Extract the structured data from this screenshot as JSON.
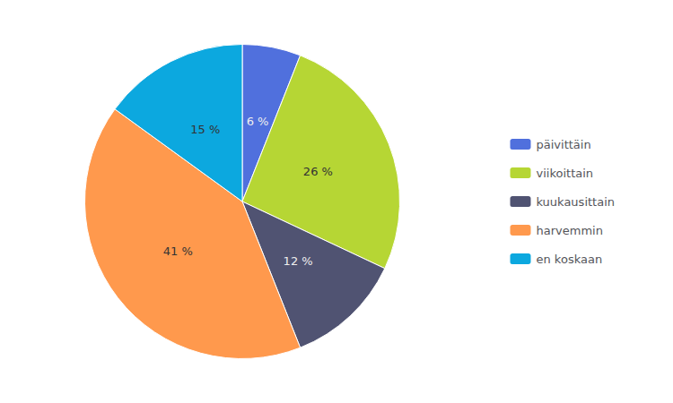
{
  "chart_data": {
    "type": "pie",
    "categories": [
      "päivittäin",
      "viikoittain",
      "kuukausittain",
      "harvemmin",
      "en koskaan"
    ],
    "values": [
      6,
      26,
      12,
      41,
      15
    ],
    "value_labels": [
      "6 %",
      "26 %",
      "12 %",
      "41 %",
      "15 %"
    ],
    "data_labels": true,
    "legend": "right"
  }
}
